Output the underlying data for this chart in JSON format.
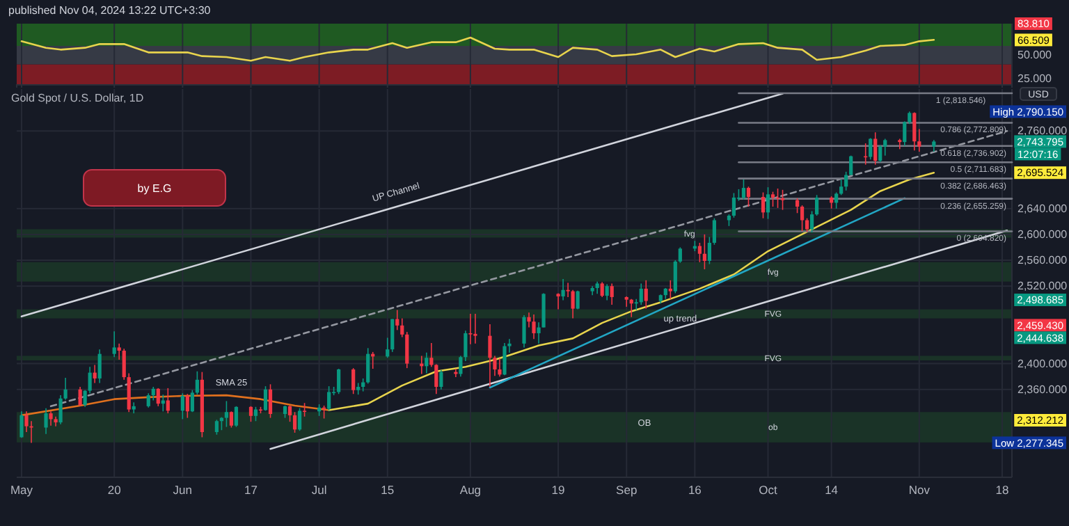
{
  "chart_data": [
    {
      "type": "line",
      "title": "published Nov 04, 2024 13:22 UTC+3:30",
      "xlim": [
        "2024-04-30",
        "2024-11-20"
      ],
      "xticks": [
        {
          "value": "2024-05-01",
          "label": null
        },
        {
          "value": "2024-05-20",
          "label": null
        },
        {
          "value": "2024-06-03",
          "label": null
        },
        {
          "value": "2024-06-17",
          "label": null
        },
        {
          "value": "2024-07-01",
          "label": null
        },
        {
          "value": "2024-07-15",
          "label": null
        },
        {
          "value": "2024-08-01",
          "label": null
        },
        {
          "value": "2024-08-19",
          "label": null
        },
        {
          "value": "2024-09-02",
          "label": null
        },
        {
          "value": "2024-09-16",
          "label": null
        },
        {
          "value": "2024-10-01",
          "label": null
        },
        {
          "value": "2024-10-14",
          "label": null
        },
        {
          "value": "2024-11-01",
          "label": null
        },
        {
          "value": "2024-11-18",
          "label": null
        }
      ],
      "ylim": [
        18,
        84
      ],
      "yticks": [
        {
          "value": 25,
          "label": "25.000"
        },
        {
          "value": 50,
          "label": "50.000"
        }
      ],
      "tick_labels": "y",
      "grid": "x",
      "bands": [
        {
          "axis": "y",
          "from": 60,
          "to": 84,
          "color": "#1f5a22"
        },
        {
          "axis": "y",
          "from": 40,
          "to": 60,
          "color": "#363a45"
        },
        {
          "axis": "y",
          "from": 18,
          "to": 40,
          "color": "#7d1c24"
        }
      ],
      "x": [
        "2024-05-01",
        "2024-05-06",
        "2024-05-09",
        "2024-05-14",
        "2024-05-17",
        "2024-05-22",
        "2024-05-27",
        "2024-05-30",
        "2024-06-04",
        "2024-06-07",
        "2024-06-12",
        "2024-06-17",
        "2024-06-20",
        "2024-06-25",
        "2024-06-28",
        "2024-07-03",
        "2024-07-08",
        "2024-07-11",
        "2024-07-16",
        "2024-07-19",
        "2024-07-24",
        "2024-07-29",
        "2024-08-01",
        "2024-08-06",
        "2024-08-09",
        "2024-08-14",
        "2024-08-19",
        "2024-08-22",
        "2024-08-27",
        "2024-08-30",
        "2024-09-04",
        "2024-09-09",
        "2024-09-12",
        "2024-09-17",
        "2024-09-20",
        "2024-09-25",
        "2024-09-30",
        "2024-10-03",
        "2024-10-08",
        "2024-10-11",
        "2024-10-16",
        "2024-10-21",
        "2024-10-24",
        "2024-10-29",
        "2024-11-01",
        "2024-11-04"
      ],
      "series": [
        {
          "type": "line",
          "color": "#e8d44d",
          "values": [
            65,
            58,
            56,
            58,
            62,
            62,
            53,
            53,
            53,
            49,
            48,
            44,
            48,
            44,
            48,
            53,
            56,
            56,
            63,
            58,
            64,
            64,
            69,
            57,
            56,
            56,
            48,
            58,
            56,
            49,
            51,
            56,
            48,
            57,
            54,
            62,
            63,
            58,
            56,
            45,
            48,
            55,
            60,
            61,
            65,
            66.509
          ]
        }
      ],
      "annotations": [
        "83.810",
        "66.509"
      ]
    },
    {
      "type": "candlestick",
      "title": "Gold Spot / U.S. Dollar, 1D",
      "ylabel": "USD",
      "xlim": [
        "2024-04-30",
        "2024-11-20"
      ],
      "xticks": [
        {
          "value": "2024-05-01",
          "label": "May"
        },
        {
          "value": "2024-05-20",
          "label": "20"
        },
        {
          "value": "2024-06-03",
          "label": "Jun"
        },
        {
          "value": "2024-06-17",
          "label": "17"
        },
        {
          "value": "2024-07-01",
          "label": "Jul"
        },
        {
          "value": "2024-07-15",
          "label": "15"
        },
        {
          "value": "2024-08-01",
          "label": "Aug"
        },
        {
          "value": "2024-08-19",
          "label": "19"
        },
        {
          "value": "2024-09-02",
          "label": "Sep"
        },
        {
          "value": "2024-09-16",
          "label": "16"
        },
        {
          "value": "2024-10-01",
          "label": "Oct"
        },
        {
          "value": "2024-10-14",
          "label": "14"
        },
        {
          "value": "2024-11-01",
          "label": "Nov"
        },
        {
          "value": "2024-11-18",
          "label": "18"
        }
      ],
      "ylim": [
        2224,
        2825
      ],
      "yticks": [
        {
          "value": 2360,
          "label": "2,360.000"
        },
        {
          "value": 2400,
          "label": "2,400.000"
        },
        {
          "value": 2520,
          "label": "2,520.000"
        },
        {
          "value": 2560,
          "label": "2,560.000"
        },
        {
          "value": 2600,
          "label": "2,600.000"
        },
        {
          "value": 2640,
          "label": "2,640.000"
        },
        {
          "value": 2760,
          "label": "2,760.000"
        }
      ],
      "grid": true,
      "bands": [
        {
          "axis": "y",
          "from": 2278,
          "to": 2325,
          "label": "ob",
          "color": "#1a3327"
        },
        {
          "axis": "y",
          "from": 2405,
          "to": 2412,
          "label": "FVG",
          "color": "#1a3327"
        },
        {
          "axis": "y",
          "from": 2470,
          "to": 2484,
          "label": "FVG",
          "color": "#1a3327"
        },
        {
          "axis": "y",
          "from": 2527,
          "to": 2557,
          "label": "fvg",
          "color": "#1a3327"
        },
        {
          "axis": "y",
          "from": 2595,
          "to": 2608,
          "label": "fvg",
          "color": "#1a3327"
        }
      ],
      "x": [
        "2024-05-01",
        "2024-05-02",
        "2024-05-03",
        "2024-05-06",
        "2024-05-07",
        "2024-05-08",
        "2024-05-09",
        "2024-05-10",
        "2024-05-13",
        "2024-05-14",
        "2024-05-15",
        "2024-05-16",
        "2024-05-17",
        "2024-05-20",
        "2024-05-21",
        "2024-05-22",
        "2024-05-23",
        "2024-05-24",
        "2024-05-27",
        "2024-05-28",
        "2024-05-29",
        "2024-05-30",
        "2024-05-31",
        "2024-06-03",
        "2024-06-04",
        "2024-06-05",
        "2024-06-06",
        "2024-06-07",
        "2024-06-10",
        "2024-06-11",
        "2024-06-12",
        "2024-06-13",
        "2024-06-14",
        "2024-06-17",
        "2024-06-18",
        "2024-06-19",
        "2024-06-20",
        "2024-06-21",
        "2024-06-24",
        "2024-06-25",
        "2024-06-26",
        "2024-06-27",
        "2024-06-28",
        "2024-07-01",
        "2024-07-02",
        "2024-07-03",
        "2024-07-04",
        "2024-07-05",
        "2024-07-08",
        "2024-07-09",
        "2024-07-10",
        "2024-07-11",
        "2024-07-12",
        "2024-07-15",
        "2024-07-16",
        "2024-07-17",
        "2024-07-18",
        "2024-07-19",
        "2024-07-22",
        "2024-07-23",
        "2024-07-24",
        "2024-07-25",
        "2024-07-26",
        "2024-07-29",
        "2024-07-30",
        "2024-07-31",
        "2024-08-01",
        "2024-08-02",
        "2024-08-05",
        "2024-08-06",
        "2024-08-07",
        "2024-08-08",
        "2024-08-09",
        "2024-08-12",
        "2024-08-13",
        "2024-08-14",
        "2024-08-15",
        "2024-08-16",
        "2024-08-19",
        "2024-08-20",
        "2024-08-21",
        "2024-08-22",
        "2024-08-23",
        "2024-08-26",
        "2024-08-27",
        "2024-08-28",
        "2024-08-29",
        "2024-08-30",
        "2024-09-02",
        "2024-09-03",
        "2024-09-04",
        "2024-09-05",
        "2024-09-06",
        "2024-09-09",
        "2024-09-10",
        "2024-09-11",
        "2024-09-12",
        "2024-09-13",
        "2024-09-16",
        "2024-09-17",
        "2024-09-18",
        "2024-09-19",
        "2024-09-20",
        "2024-09-23",
        "2024-09-24",
        "2024-09-25",
        "2024-09-26",
        "2024-09-27",
        "2024-09-30",
        "2024-10-01",
        "2024-10-02",
        "2024-10-03",
        "2024-10-04",
        "2024-10-07",
        "2024-10-08",
        "2024-10-09",
        "2024-10-10",
        "2024-10-11",
        "2024-10-14",
        "2024-10-15",
        "2024-10-16",
        "2024-10-17",
        "2024-10-18",
        "2024-10-21",
        "2024-10-22",
        "2024-10-23",
        "2024-10-24",
        "2024-10-25",
        "2024-10-28",
        "2024-10-29",
        "2024-10-30",
        "2024-10-31",
        "2024-11-01",
        "2024-11-04"
      ],
      "ohlc": [
        [
          2286,
          2326,
          2285,
          2320
        ],
        [
          2320,
          2326,
          2294,
          2303
        ],
        [
          2303,
          2311,
          2277.345,
          2301
        ],
        [
          2301,
          2331,
          2291,
          2323
        ],
        [
          2323,
          2326,
          2304,
          2314
        ],
        [
          2314,
          2318,
          2303,
          2309
        ],
        [
          2309,
          2351,
          2306,
          2346
        ],
        [
          2346,
          2378,
          2344,
          2360
        ],
        [
          2360,
          2364,
          2334,
          2336
        ],
        [
          2336,
          2359,
          2333,
          2358
        ],
        [
          2358,
          2395,
          2354,
          2386
        ],
        [
          2386,
          2398,
          2370,
          2377
        ],
        [
          2377,
          2422,
          2370,
          2415
        ],
        [
          2415,
          2450,
          2410,
          2425
        ],
        [
          2425,
          2431,
          2406,
          2420
        ],
        [
          2420,
          2423,
          2375,
          2379
        ],
        [
          2379,
          2385,
          2325,
          2329
        ],
        [
          2329,
          2340,
          2323,
          2334
        ],
        [
          2334,
          2354,
          2332,
          2351
        ],
        [
          2351,
          2364,
          2343,
          2361
        ],
        [
          2361,
          2362,
          2334,
          2338
        ],
        [
          2338,
          2352,
          2326,
          2343
        ],
        [
          2343,
          2362,
          2323,
          2327
        ],
        [
          2327,
          2354,
          2314,
          2350
        ],
        [
          2350,
          2353,
          2316,
          2326
        ],
        [
          2326,
          2359,
          2325,
          2355
        ],
        [
          2355,
          2388,
          2352,
          2375
        ],
        [
          2375,
          2387,
          2286,
          2294
        ],
        [
          2294,
          2313,
          2290,
          2311
        ],
        [
          2311,
          2317,
          2297,
          2316
        ],
        [
          2316,
          2342,
          2302,
          2325
        ],
        [
          2325,
          2326,
          2301,
          2304
        ],
        [
          2304,
          2334,
          2302,
          2333
        ],
        [
          2333,
          2334,
          2310,
          2319
        ],
        [
          2319,
          2333,
          2311,
          2329
        ],
        [
          2329,
          2333,
          2323,
          2328
        ],
        [
          2328,
          2365,
          2327,
          2360
        ],
        [
          2360,
          2368,
          2316,
          2322
        ],
        [
          2322,
          2335,
          2316,
          2334
        ],
        [
          2334,
          2335,
          2310,
          2320
        ],
        [
          2320,
          2325,
          2293,
          2298
        ],
        [
          2298,
          2331,
          2296,
          2327
        ],
        [
          2327,
          2339,
          2318,
          2326
        ],
        [
          2326,
          2337,
          2319,
          2332
        ],
        [
          2332,
          2335,
          2315,
          2330
        ],
        [
          2330,
          2365,
          2327,
          2356
        ],
        [
          2356,
          2364,
          2351,
          2356
        ],
        [
          2356,
          2392,
          2353,
          2391
        ],
        [
          2391,
          2393,
          2353,
          2359
        ],
        [
          2359,
          2370,
          2352,
          2364
        ],
        [
          2364,
          2377,
          2357,
          2371
        ],
        [
          2371,
          2424,
          2369,
          2415
        ],
        [
          2415,
          2418,
          2392,
          2411
        ],
        [
          2411,
          2440,
          2409,
          2422
        ],
        [
          2422,
          2469,
          2418,
          2469
        ],
        [
          2469,
          2483,
          2452,
          2459
        ],
        [
          2459,
          2470,
          2441,
          2445
        ],
        [
          2445,
          2449,
          2393,
          2400
        ],
        [
          2400,
          2412,
          2384,
          2396
        ],
        [
          2396,
          2417,
          2385,
          2409
        ],
        [
          2409,
          2432,
          2395,
          2398
        ],
        [
          2398,
          2399,
          2353,
          2364
        ],
        [
          2364,
          2390,
          2360,
          2387
        ],
        [
          2387,
          2392,
          2379,
          2384
        ],
        [
          2384,
          2412,
          2380,
          2410
        ],
        [
          2410,
          2451,
          2404,
          2447
        ],
        [
          2447,
          2477,
          2430,
          2446
        ],
        [
          2446,
          2477,
          2431,
          2443
        ],
        [
          2443,
          2461,
          2364,
          2409
        ],
        [
          2409,
          2412,
          2381,
          2391
        ],
        [
          2391,
          2408,
          2380,
          2383
        ],
        [
          2383,
          2432,
          2382,
          2427
        ],
        [
          2427,
          2438,
          2417,
          2431
        ],
        [
          2431,
          2475,
          2425,
          2472
        ],
        [
          2472,
          2479,
          2456,
          2465
        ],
        [
          2465,
          2476,
          2438,
          2447
        ],
        [
          2447,
          2464,
          2431,
          2456
        ],
        [
          2456,
          2509,
          2456,
          2508
        ],
        [
          2508,
          2509,
          2484,
          2504
        ],
        [
          2504,
          2531,
          2498,
          2514
        ],
        [
          2514,
          2525,
          2503,
          2512
        ],
        [
          2512,
          2514,
          2470,
          2485
        ],
        [
          2485,
          2513,
          2484,
          2512
        ],
        [
          2512,
          2520,
          2506,
          2517
        ],
        [
          2517,
          2527,
          2508,
          2524
        ],
        [
          2524,
          2526,
          2503,
          2505
        ],
        [
          2505,
          2523,
          2498,
          2520
        ],
        [
          2520,
          2524,
          2491,
          2503
        ],
        [
          2503,
          2504,
          2488,
          2499
        ],
        [
          2499,
          2500,
          2472,
          2493
        ],
        [
          2493,
          2500,
          2483,
          2495
        ],
        [
          2495,
          2524,
          2491,
          2516
        ],
        [
          2516,
          2529,
          2485,
          2497
        ],
        [
          2497,
          2507,
          2493,
          2506
        ],
        [
          2506,
          2517,
          2500,
          2516
        ],
        [
          2516,
          2529,
          2500,
          2512
        ],
        [
          2512,
          2560,
          2509,
          2558
        ],
        [
          2558,
          2580,
          2556,
          2578
        ],
        [
          2578,
          2590,
          2574,
          2582
        ],
        [
          2582,
          2587,
          2557,
          2570
        ],
        [
          2570,
          2600,
          2546,
          2559
        ],
        [
          2559,
          2596,
          2554,
          2587
        ],
        [
          2587,
          2625,
          2584,
          2622
        ],
        [
          2622,
          2631,
          2613,
          2629
        ],
        [
          2629,
          2664,
          2626,
          2657
        ],
        [
          2657,
          2670,
          2652,
          2657
        ],
        [
          2657,
          2685,
          2654,
          2672
        ],
        [
          2672,
          2674,
          2643,
          2658
        ],
        [
          2658,
          2665,
          2625,
          2634
        ],
        [
          2634,
          2673,
          2624,
          2662
        ],
        [
          2662,
          2666,
          2643,
          2657
        ],
        [
          2657,
          2671,
          2641,
          2656
        ],
        [
          2656,
          2669,
          2638,
          2653
        ],
        [
          2653,
          2656,
          2633,
          2643
        ],
        [
          2643,
          2645,
          2605,
          2622
        ],
        [
          2622,
          2625,
          2604,
          2608
        ],
        [
          2608,
          2636,
          2603,
          2631
        ],
        [
          2631,
          2661,
          2629,
          2657
        ],
        [
          2657,
          2659,
          2640,
          2649
        ],
        [
          2649,
          2665,
          2640,
          2663
        ],
        [
          2663,
          2685,
          2661,
          2674
        ],
        [
          2674,
          2697,
          2668,
          2692
        ],
        [
          2692,
          2722,
          2692,
          2721
        ],
        [
          2721,
          2741,
          2708,
          2720
        ],
        [
          2720,
          2749,
          2716,
          2748
        ],
        [
          2748,
          2758,
          2708,
          2714
        ],
        [
          2714,
          2738,
          2712,
          2736
        ],
        [
          2736,
          2748,
          2722,
          2746
        ],
        [
          2746,
          2748,
          2732,
          2743
        ],
        [
          2743,
          2775,
          2737,
          2774
        ],
        [
          2774,
          2790.15,
          2771,
          2788
        ],
        [
          2788,
          2789,
          2730,
          2744
        ],
        [
          2744,
          2763,
          2728,
          2736
        ],
        [
          2736,
          2746,
          2728,
          2743.795
        ]
      ],
      "series": [
        {
          "type": "line",
          "color": "#d1d4dc",
          "x": [
            "2024-05-01",
            "2024-10-04"
          ],
          "values": [
            2473,
            2818
          ]
        },
        {
          "type": "line",
          "color": "#d1d4dc",
          "x": [
            "2024-06-21",
            "2024-11-19"
          ],
          "values": [
            2268,
            2606
          ]
        },
        {
          "type": "line",
          "color": "#9598a1",
          "line_style": "dashed",
          "x": [
            "2024-05-07",
            "2024-11-19"
          ],
          "values": [
            2334,
            2760
          ]
        },
        {
          "type": "line",
          "color": "#e0701e",
          "x": [
            "2024-05-01",
            "2024-05-13",
            "2024-05-20",
            "2024-05-27",
            "2024-06-03",
            "2024-06-12",
            "2024-06-19",
            "2024-06-26",
            "2024-07-03"
          ],
          "values": [
            2320,
            2335,
            2345,
            2348,
            2350,
            2351,
            2345,
            2335,
            2328
          ]
        },
        {
          "type": "line",
          "color": "#e8d44d",
          "x": [
            "2024-07-03",
            "2024-07-11",
            "2024-07-18",
            "2024-07-25",
            "2024-07-31",
            "2024-08-06",
            "2024-08-09",
            "2024-08-15",
            "2024-08-22",
            "2024-08-28",
            "2024-09-03",
            "2024-09-09",
            "2024-09-17",
            "2024-09-24",
            "2024-10-01",
            "2024-10-09",
            "2024-10-18",
            "2024-10-24",
            "2024-10-30",
            "2024-11-04"
          ],
          "values": [
            2328,
            2338,
            2366,
            2388,
            2395,
            2406,
            2413,
            2428,
            2439,
            2463,
            2481,
            2495,
            2516,
            2538,
            2574,
            2604,
            2638,
            2667,
            2685,
            2695.524
          ]
        },
        {
          "type": "line",
          "color": "#22a6c4",
          "x": [
            "2024-08-05",
            "2024-10-29"
          ],
          "values": [
            2363,
            2656
          ]
        },
        {
          "type": "line",
          "name": "1 (2,818.546)",
          "color": "#787b86",
          "x": [
            "2024-09-25",
            "2024-11-20"
          ],
          "values": [
            2818.546,
            2818.546
          ]
        },
        {
          "type": "line",
          "name": "0.786 (2,772.809)",
          "color": "#787b86",
          "x": [
            "2024-09-25",
            "2024-11-20"
          ],
          "values": [
            2772.809,
            2772.809
          ]
        },
        {
          "type": "line",
          "name": "0.618 (2,736.902)",
          "color": "#787b86",
          "x": [
            "2024-09-25",
            "2024-11-20"
          ],
          "values": [
            2736.902,
            2736.902
          ]
        },
        {
          "type": "line",
          "name": "0.5 (2,711.683)",
          "color": "#787b86",
          "x": [
            "2024-09-25",
            "2024-11-20"
          ],
          "values": [
            2711.683,
            2711.683
          ]
        },
        {
          "type": "line",
          "name": "0.382 (2,686.463)",
          "color": "#787b86",
          "x": [
            "2024-09-25",
            "2024-11-20"
          ],
          "values": [
            2686.463,
            2686.463
          ]
        },
        {
          "type": "line",
          "name": "0.236 (2,655.259)",
          "color": "#787b86",
          "x": [
            "2024-09-25",
            "2024-11-20"
          ],
          "values": [
            2655.259,
            2655.259
          ]
        },
        {
          "type": "line",
          "name": "0 (2,604.820)",
          "color": "#787b86",
          "x": [
            "2024-09-25",
            "2024-11-20"
          ],
          "values": [
            2604.82,
            2604.82
          ]
        }
      ],
      "annotations": [
        "by E.G",
        {
          "text": "SMA 25",
          "x": "2024-06-13",
          "y": 2352
        },
        "UP Channel",
        {
          "text": "up trend",
          "x": "2024-09-13",
          "y": 2498
        },
        "OB",
        "High 2,790.150",
        "2,743.795",
        "12:07:16",
        "2,695.524",
        "2,498.685",
        "2,459.430",
        "2,444.638",
        "2,312.212",
        "Low 2,277.345"
      ]
    }
  ]
}
